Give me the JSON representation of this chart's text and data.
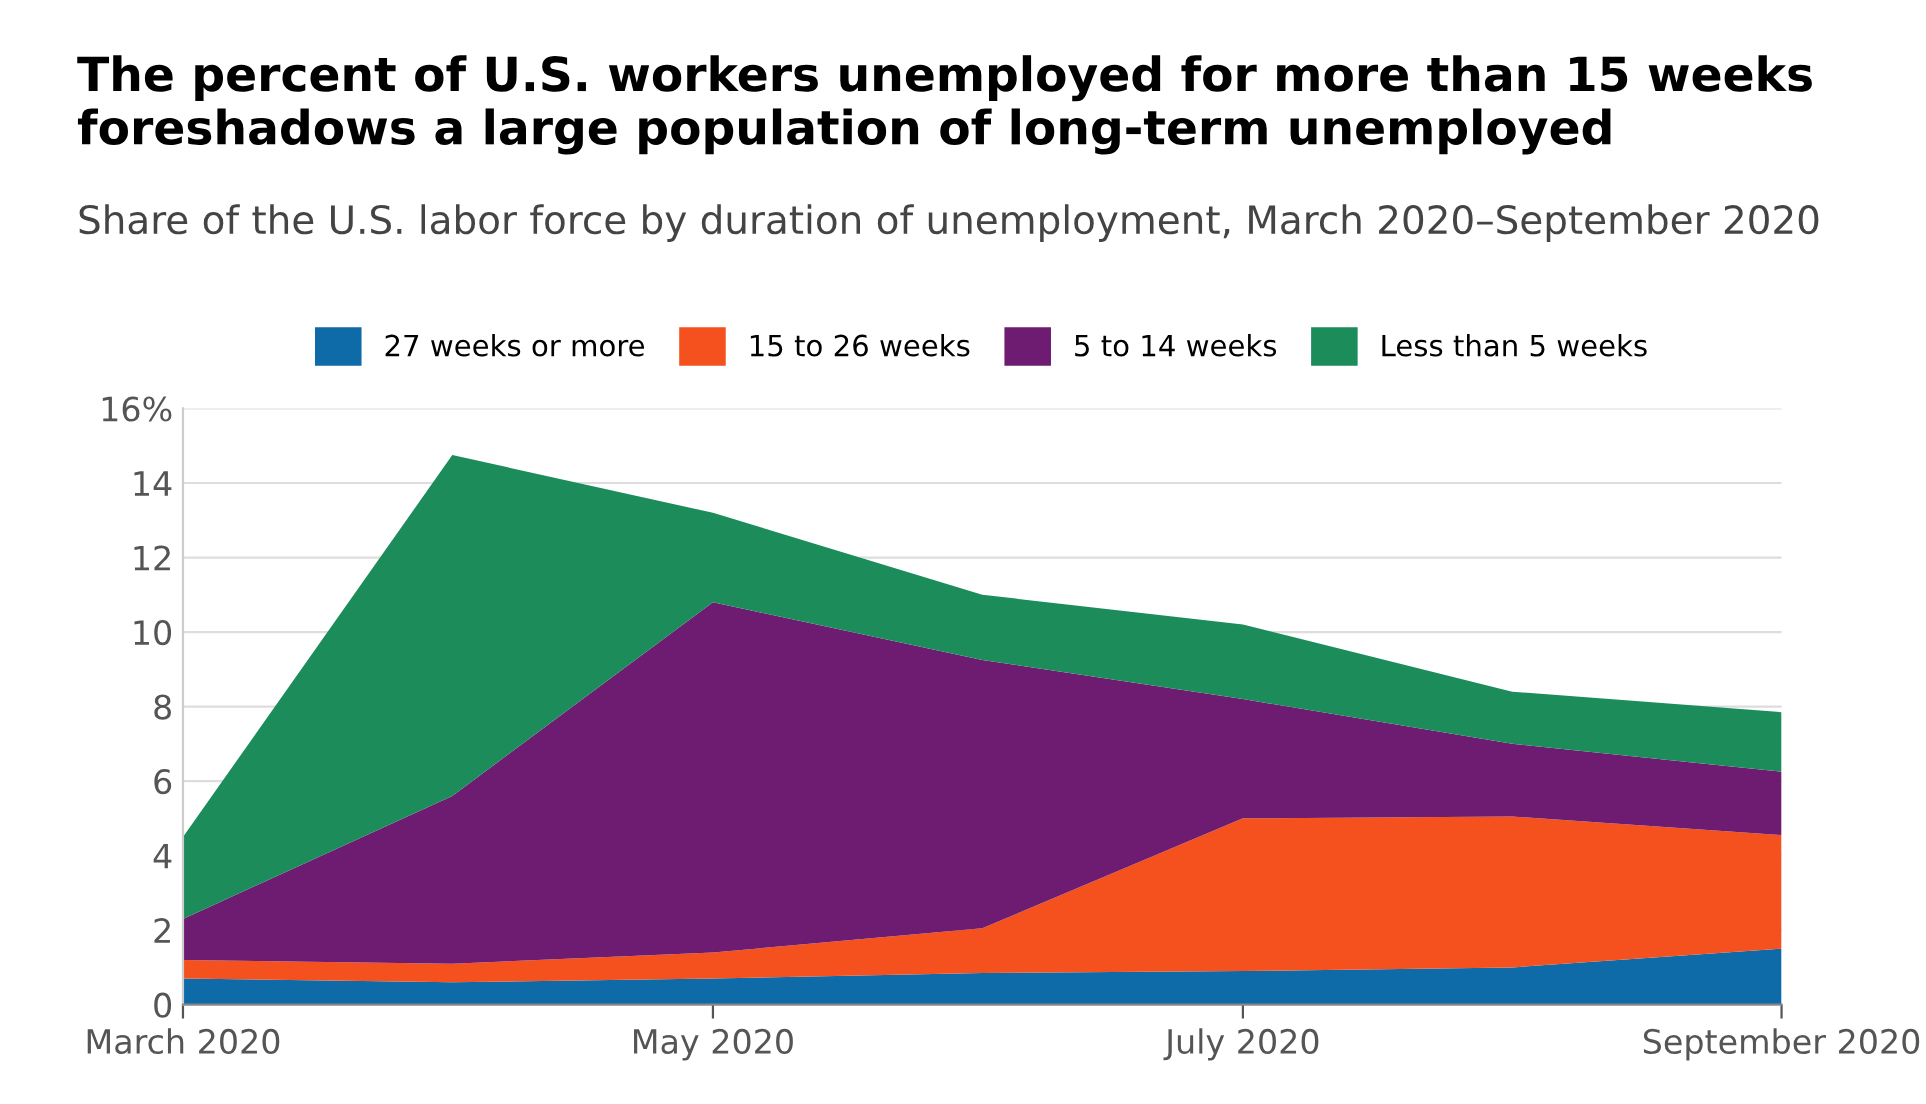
{
  "chart_data": {
    "type": "area",
    "stacked": true,
    "title": "The percent of U.S. workers unemployed for more than 15 weeks\nforeshadows a large population of long-term unemployed",
    "subtitle": "Share of the U.S. labor force by duration of unemployment, March 2020–September 2020",
    "x": [
      "2020-03",
      "2020-04",
      "2020-05",
      "2020-06",
      "2020-07",
      "2020-08",
      "2020-09"
    ],
    "series": [
      {
        "name": "27 weeks or more",
        "color": "#0f6aa8",
        "values": [
          0.7,
          0.6,
          0.7,
          0.85,
          0.9,
          1.0,
          1.5
        ]
      },
      {
        "name": "15 to 26 weeks",
        "color": "#f4511e",
        "values": [
          0.5,
          0.5,
          0.7,
          1.2,
          4.1,
          4.05,
          3.05
        ]
      },
      {
        "name": "5 to 14 weeks",
        "color": "#6e1c72",
        "values": [
          1.1,
          4.5,
          9.4,
          7.2,
          3.2,
          1.95,
          1.7
        ]
      },
      {
        "name": "Less than 5 weeks",
        "color": "#1b8c5a",
        "values": [
          2.2,
          9.15,
          2.4,
          1.75,
          2.0,
          1.4,
          1.6
        ]
      }
    ],
    "xlim": [
      "2020-03",
      "2020-09"
    ],
    "xticks": [
      {
        "value": "2020-03",
        "label": "March 2020"
      },
      {
        "value": "2020-05",
        "label": "May 2020"
      },
      {
        "value": "2020-07",
        "label": "July 2020"
      },
      {
        "value": "2020-09",
        "label": "September 2020"
      }
    ],
    "ylim": [
      0,
      16
    ],
    "yticks": [
      0,
      2,
      4,
      6,
      8,
      10,
      12,
      14,
      {
        "value": 16,
        "label": "16%"
      }
    ],
    "grid": "y",
    "legend": "top"
  }
}
